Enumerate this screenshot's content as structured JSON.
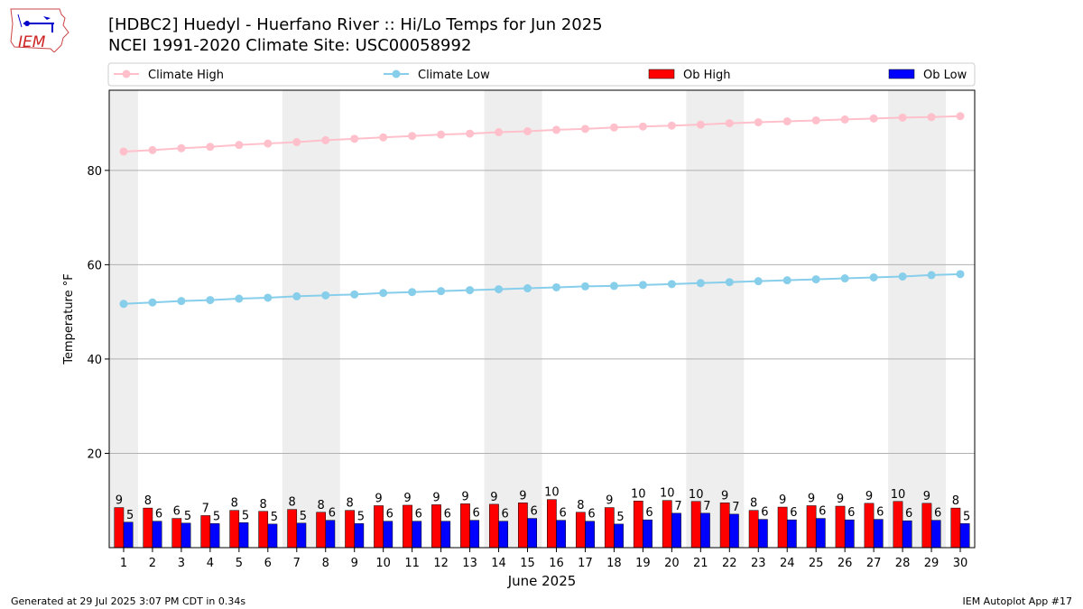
{
  "title": "[HDBC2] Huedyl - Huerfano River :: Hi/Lo Temps for Jun 2025",
  "subtitle": "NCEI 1991-2020 Climate Site: USC00058992",
  "logo_text": "IEM",
  "footer": {
    "generated": "Generated at 29 Jul 2025 3:07 PM CDT in 0.34s",
    "app": "IEM Autoplot App #17"
  },
  "colors": {
    "climate_high": "#ffc0cb",
    "climate_low": "#87ceeb",
    "ob_high": "#ff0000",
    "ob_low": "#0000ff",
    "weekend_shade": "#eeeeee"
  },
  "chart_data": {
    "type": "bar",
    "xlabel": "June 2025",
    "ylabel": "Temperature °F",
    "ylim": [
      0,
      97
    ],
    "yticks": [
      20,
      40,
      60,
      80
    ],
    "grid": true,
    "legend_placement": "top",
    "x": [
      1,
      2,
      3,
      4,
      5,
      6,
      7,
      8,
      9,
      10,
      11,
      12,
      13,
      14,
      15,
      16,
      17,
      18,
      19,
      20,
      21,
      22,
      23,
      24,
      25,
      26,
      27,
      28,
      29,
      30
    ],
    "shaded_days": [
      [
        1,
        1
      ],
      [
        7,
        8
      ],
      [
        14,
        15
      ],
      [
        21,
        22
      ],
      [
        28,
        29
      ]
    ],
    "series": [
      {
        "name": "Climate High",
        "kind": "line",
        "values": [
          84.0,
          84.3,
          84.7,
          85.0,
          85.4,
          85.7,
          86.0,
          86.4,
          86.7,
          87.0,
          87.3,
          87.6,
          87.8,
          88.1,
          88.3,
          88.6,
          88.8,
          89.1,
          89.3,
          89.5,
          89.7,
          90.0,
          90.2,
          90.4,
          90.6,
          90.8,
          91.0,
          91.2,
          91.3,
          91.5
        ]
      },
      {
        "name": "Climate Low",
        "kind": "line",
        "values": [
          51.7,
          52.0,
          52.3,
          52.5,
          52.8,
          53.0,
          53.3,
          53.5,
          53.7,
          54.0,
          54.2,
          54.4,
          54.6,
          54.8,
          55.0,
          55.2,
          55.4,
          55.5,
          55.7,
          55.9,
          56.1,
          56.3,
          56.5,
          56.7,
          56.9,
          57.1,
          57.3,
          57.5,
          57.8,
          58.0
        ]
      },
      {
        "name": "Ob High",
        "kind": "bar",
        "values": [
          8.5,
          8.4,
          6.2,
          6.8,
          7.9,
          7.7,
          8.1,
          7.5,
          7.9,
          8.9,
          9.0,
          9.1,
          9.3,
          9.2,
          9.5,
          10.2,
          7.5,
          8.5,
          9.9,
          10.0,
          9.8,
          9.5,
          7.9,
          8.6,
          8.9,
          8.8,
          9.4,
          9.8,
          9.4,
          8.4
        ],
        "labels": [
          "9",
          "8",
          "6",
          "7",
          "8",
          "8",
          "8",
          "8",
          "8",
          "9",
          "9",
          "9",
          "9",
          "9",
          "9",
          "10",
          "8",
          "9",
          "10",
          "10",
          "10",
          "9",
          "8",
          "9",
          "9",
          "9",
          "9",
          "10",
          "9",
          "8"
        ]
      },
      {
        "name": "Ob Low",
        "kind": "bar",
        "values": [
          5.4,
          5.6,
          5.2,
          5.1,
          5.3,
          5.0,
          5.2,
          5.8,
          5.1,
          5.6,
          5.6,
          5.6,
          5.8,
          5.6,
          6.2,
          5.8,
          5.6,
          5.0,
          5.9,
          7.3,
          7.3,
          7.1,
          6.0,
          5.9,
          6.2,
          5.9,
          6.0,
          5.7,
          5.8,
          5.1
        ],
        "labels": [
          "5",
          "6",
          "5",
          "5",
          "5",
          "5",
          "5",
          "6",
          "5",
          "6",
          "6",
          "6",
          "6",
          "6",
          "6",
          "6",
          "6",
          "5",
          "6",
          "7",
          "7",
          "7",
          "6",
          "6",
          "6",
          "6",
          "6",
          "6",
          "6",
          "5"
        ]
      }
    ]
  }
}
